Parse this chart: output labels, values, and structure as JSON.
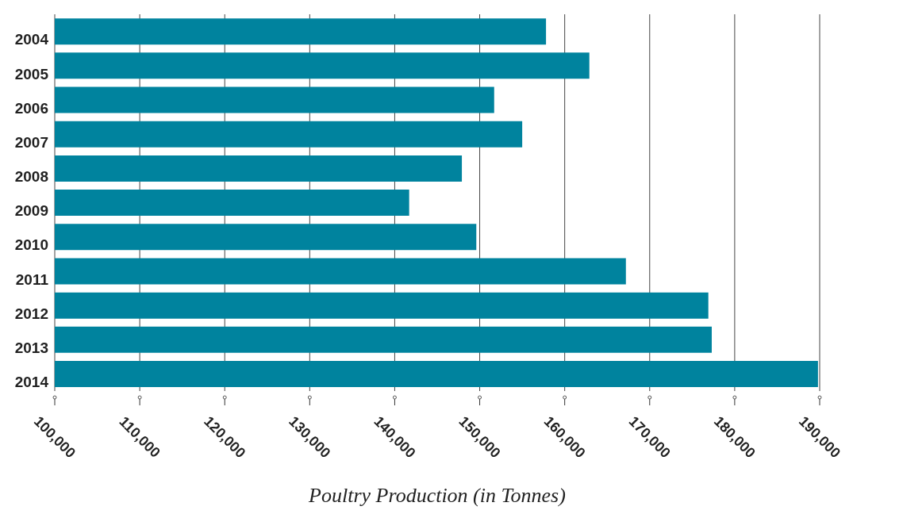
{
  "chart_data": {
    "type": "bar",
    "orientation": "horizontal",
    "xlabel": "Poultry Production (in Tonnes)",
    "categories": [
      "2004",
      "2005",
      "2006",
      "2007",
      "2008",
      "2009",
      "2010",
      "2011",
      "2012",
      "2013",
      "2014"
    ],
    "values": [
      157800,
      162900,
      151700,
      155000,
      147900,
      141700,
      149600,
      167200,
      176900,
      177300,
      189800
    ],
    "color": "#00839e",
    "xlim": [
      100000,
      190000
    ],
    "xticks": [
      {
        "value": 100000,
        "label": "100,000"
      },
      {
        "value": 110000,
        "label": "110,000"
      },
      {
        "value": 120000,
        "label": "120,000"
      },
      {
        "value": 130000,
        "label": "130,000"
      },
      {
        "value": 140000,
        "label": "140,000"
      },
      {
        "value": 150000,
        "label": "150,000"
      },
      {
        "value": 160000,
        "label": "160,000"
      },
      {
        "value": 170000,
        "label": "170,000"
      },
      {
        "value": 180000,
        "label": "180,000"
      },
      {
        "value": 190000,
        "label": "190,000"
      }
    ],
    "grid": "x"
  }
}
